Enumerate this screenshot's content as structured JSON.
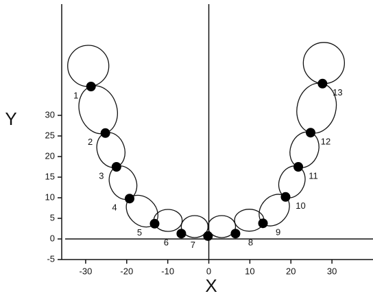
{
  "chart_data": {
    "type": "scatter",
    "x_label": "X",
    "y_label": "Y",
    "x": [
      -28.7,
      -25.2,
      -22.5,
      -19.3,
      -13.2,
      -6.7,
      -0.2,
      6.5,
      13.2,
      18.7,
      21.8,
      24.8,
      27.7
    ],
    "values": [
      37,
      25.7,
      17.5,
      9.8,
      3.7,
      1.3,
      0.7,
      1.3,
      3.8,
      10.2,
      17.5,
      25.8,
      37.7
    ],
    "labels": [
      "1",
      "2",
      "3",
      "4",
      "5",
      "6",
      "7",
      "8",
      "9",
      "10",
      "11",
      "12",
      "13"
    ],
    "color": "#000000",
    "xlim": [
      -35,
      40
    ],
    "ylim": [
      -5,
      57
    ],
    "xticks": [
      -30,
      -20,
      -10,
      0,
      10,
      20,
      30
    ],
    "yticks": [
      -5,
      0,
      5,
      10,
      15,
      20,
      25,
      30
    ],
    "grid": false
  }
}
